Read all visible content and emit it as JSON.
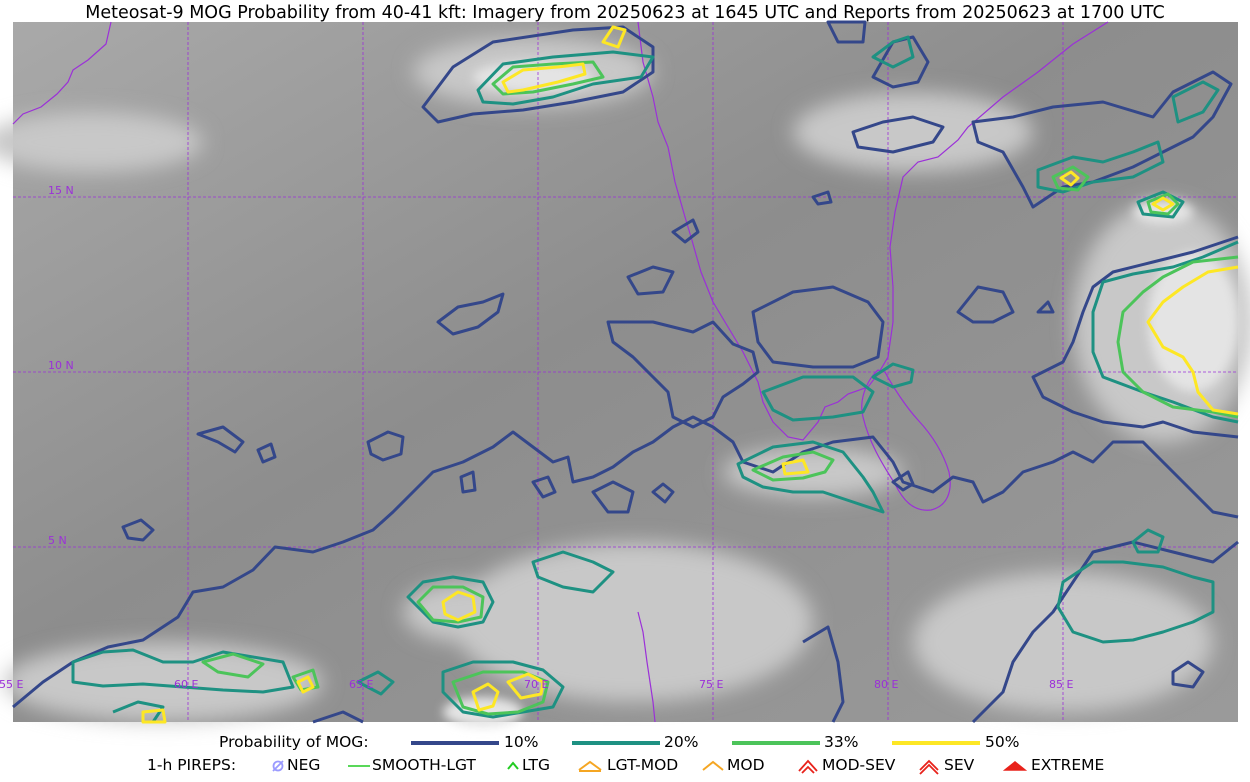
{
  "title": "Meteosat-9 MOG Probability from 40-41 kft: Imagery from 20250623 at 1645 UTC and Reports from 20250623 at 1700 UTC",
  "map": {
    "lat_labels": [
      "15 N",
      "10 N",
      "5 N"
    ],
    "lon_labels": [
      "55 E",
      "60 E",
      "65 E",
      "70 E",
      "75 E",
      "80 E",
      "85 E"
    ],
    "colors": {
      "p10": "#34478a",
      "p20": "#1e9182",
      "p33": "#4cc45a",
      "p50": "#fde725",
      "coast": "#9b30d8",
      "grid": "#9b30d8"
    }
  },
  "legend": {
    "probability_label": "Probability of MOG:",
    "levels": [
      {
        "label": "10%",
        "color": "#34478a"
      },
      {
        "label": "20%",
        "color": "#1e9182"
      },
      {
        "label": "33%",
        "color": "#4cc45a"
      },
      {
        "label": "50%",
        "color": "#fde725"
      }
    ],
    "pirep_label": "1-h PIREPS:",
    "pireps": [
      {
        "label": "NEG",
        "icon": "neg-icon",
        "color": "#9a9aff"
      },
      {
        "label": "SMOOTH-LGT",
        "icon": "smooth-lgt-icon",
        "color": "#22cc22"
      },
      {
        "label": "LTG",
        "icon": "ltg-icon",
        "color": "#22cc22"
      },
      {
        "label": "LGT-MOD",
        "icon": "lgt-mod-icon",
        "color": "#f5a623"
      },
      {
        "label": "MOD",
        "icon": "mod-icon",
        "color": "#f5a623"
      },
      {
        "label": "MOD-SEV",
        "icon": "mod-sev-icon",
        "color": "#e8221b"
      },
      {
        "label": "SEV",
        "icon": "sev-icon",
        "color": "#e8221b"
      },
      {
        "label": "EXTREME",
        "icon": "extreme-icon",
        "color": "#e8221b"
      }
    ]
  }
}
